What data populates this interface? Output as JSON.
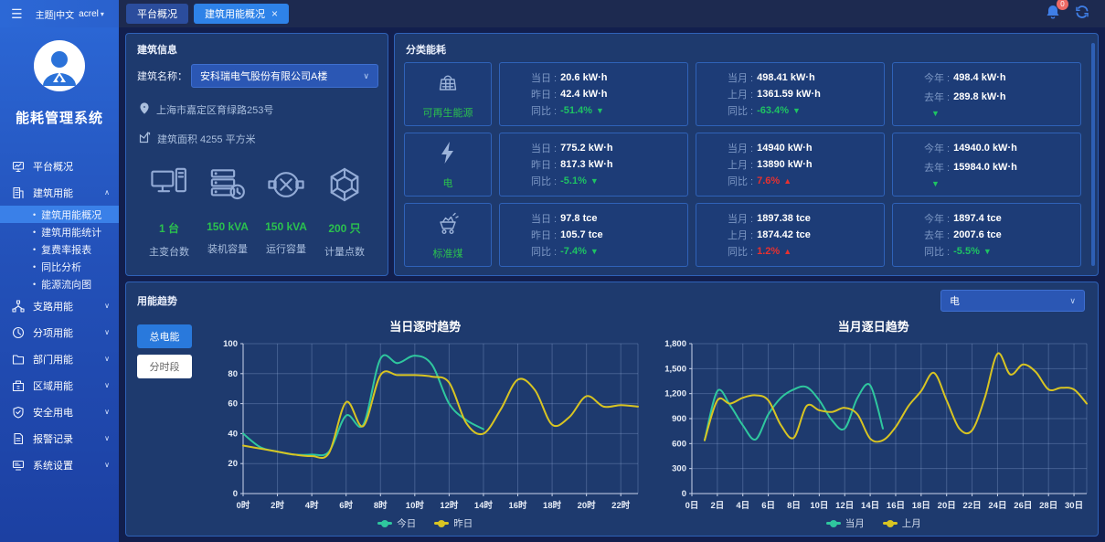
{
  "topbar": {
    "brand_menu": "主题|中文",
    "user": "acrel",
    "badge": "0",
    "tabs": [
      {
        "label": "平台概况"
      },
      {
        "label": "建筑用能概况"
      }
    ]
  },
  "sidebar": {
    "app_title": "能耗管理系统",
    "items": [
      {
        "label": "平台概况",
        "chev": ""
      },
      {
        "label": "建筑用能",
        "chev": "∧"
      },
      {
        "label": "建筑用能概况"
      },
      {
        "label": "建筑用能统计"
      },
      {
        "label": "复费率报表"
      },
      {
        "label": "同比分析"
      },
      {
        "label": "能源流向图"
      },
      {
        "label": "支路用能",
        "chev": "∨"
      },
      {
        "label": "分项用能",
        "chev": "∨"
      },
      {
        "label": "部门用能",
        "chev": "∨"
      },
      {
        "label": "区域用能",
        "chev": "∨"
      },
      {
        "label": "安全用电",
        "chev": "∨"
      },
      {
        "label": "报警记录",
        "chev": "∨"
      },
      {
        "label": "系统设置",
        "chev": "∨"
      }
    ]
  },
  "building": {
    "panel_title": "建筑信息",
    "name_label": "建筑名称：",
    "name_value": "安科瑞电气股份有限公司A楼",
    "address": "上海市嘉定区育绿路253号",
    "area": "建筑面积 4255 平方米",
    "stats": [
      {
        "value": "1 台",
        "label": "主变台数"
      },
      {
        "value": "150 kVA",
        "label": "装机容量"
      },
      {
        "value": "150 kVA",
        "label": "运行容量"
      },
      {
        "value": "200 只",
        "label": "计量点数"
      }
    ]
  },
  "energy": {
    "panel_title": "分类能耗",
    "rows": [
      {
        "category": "可再生能源",
        "boxes": [
          {
            "l1": {
              "label": "当日 :",
              "value": "20.6 kW·h"
            },
            "l2": {
              "label": "昨日 :",
              "value": "42.4 kW·h"
            },
            "cmp": {
              "label": "同比 :",
              "value": "-51.4%",
              "dir": "down"
            }
          },
          {
            "l1": {
              "label": "当月 :",
              "value": "498.41 kW·h"
            },
            "l2": {
              "label": "上月 :",
              "value": "1361.59 kW·h"
            },
            "cmp": {
              "label": "同比 :",
              "value": "-63.4%",
              "dir": "down"
            }
          },
          {
            "l1": {
              "label": "今年 :",
              "value": "498.4 kW·h"
            },
            "l2": {
              "label": "去年 :",
              "value": "289.8 kW·h"
            },
            "cmp": {
              "label": "",
              "value": "",
              "dir": "down"
            }
          }
        ]
      },
      {
        "category": "电",
        "boxes": [
          {
            "l1": {
              "label": "当日 :",
              "value": "775.2 kW·h"
            },
            "l2": {
              "label": "昨日 :",
              "value": "817.3 kW·h"
            },
            "cmp": {
              "label": "同比 :",
              "value": "-5.1%",
              "dir": "down"
            }
          },
          {
            "l1": {
              "label": "当月 :",
              "value": "14940 kW·h"
            },
            "l2": {
              "label": "上月 :",
              "value": "13890 kW·h"
            },
            "cmp": {
              "label": "同比 :",
              "value": "7.6%",
              "dir": "up"
            }
          },
          {
            "l1": {
              "label": "今年 :",
              "value": "14940.0 kW·h"
            },
            "l2": {
              "label": "去年 :",
              "value": "15984.0 kW·h"
            },
            "cmp": {
              "label": "",
              "value": "",
              "dir": "down"
            }
          }
        ]
      },
      {
        "category": "标准煤",
        "boxes": [
          {
            "l1": {
              "label": "当日 :",
              "value": "97.8 tce"
            },
            "l2": {
              "label": "昨日 :",
              "value": "105.7 tce"
            },
            "cmp": {
              "label": "同比 :",
              "value": "-7.4%",
              "dir": "down"
            }
          },
          {
            "l1": {
              "label": "当月 :",
              "value": "1897.38 tce"
            },
            "l2": {
              "label": "上月 :",
              "value": "1874.42 tce"
            },
            "cmp": {
              "label": "同比 :",
              "value": "1.2%",
              "dir": "up"
            }
          },
          {
            "l1": {
              "label": "今年 :",
              "value": "1897.4 tce"
            },
            "l2": {
              "label": "去年 :",
              "value": "2007.6 tce"
            },
            "cmp": {
              "label": "同比 :",
              "value": "-5.5%",
              "dir": "down"
            }
          }
        ]
      }
    ]
  },
  "trend": {
    "panel_title": "用能趋势",
    "buttons": [
      {
        "label": "总电能"
      },
      {
        "label": "分时段"
      }
    ],
    "select_value": "电"
  },
  "chart_data": [
    {
      "type": "line",
      "title": "当日逐时趋势",
      "x_max": 23,
      "y_max": 100,
      "x_ticks": [
        {
          "v": 0,
          "label": "0时"
        },
        {
          "v": 2,
          "label": "2时"
        },
        {
          "v": 4,
          "label": "4时"
        },
        {
          "v": 6,
          "label": "6时"
        },
        {
          "v": 8,
          "label": "8时"
        },
        {
          "v": 10,
          "label": "10时"
        },
        {
          "v": 12,
          "label": "12时"
        },
        {
          "v": 14,
          "label": "14时"
        },
        {
          "v": 16,
          "label": "16时"
        },
        {
          "v": 18,
          "label": "18时"
        },
        {
          "v": 20,
          "label": "20时"
        },
        {
          "v": 22,
          "label": "22时"
        }
      ],
      "y_ticks": [
        {
          "v": 0,
          "label": "0"
        },
        {
          "v": 20,
          "label": "20"
        },
        {
          "v": 40,
          "label": "40"
        },
        {
          "v": 60,
          "label": "60"
        },
        {
          "v": 80,
          "label": "80"
        },
        {
          "v": 100,
          "label": "100"
        }
      ],
      "series": [
        {
          "name": "今日",
          "color": "#2fc79e",
          "x_start": 0,
          "values": [
            40,
            31,
            28,
            26,
            26,
            28,
            52,
            46,
            90,
            87,
            92,
            86,
            60,
            49,
            43
          ]
        },
        {
          "name": "昨日",
          "color": "#d8c422",
          "x_start": 0,
          "values": [
            32,
            30,
            28,
            26,
            25,
            27,
            61,
            45,
            79,
            79,
            79,
            78,
            74,
            47,
            40,
            56,
            76,
            69,
            46,
            51,
            65,
            58,
            59,
            58
          ]
        }
      ]
    },
    {
      "type": "line",
      "title": "当月逐日趋势",
      "x_max": 31,
      "y_max": 1800,
      "x_ticks": [
        {
          "v": 0,
          "label": "0日"
        },
        {
          "v": 2,
          "label": "2日"
        },
        {
          "v": 4,
          "label": "4日"
        },
        {
          "v": 6,
          "label": "6日"
        },
        {
          "v": 8,
          "label": "8日"
        },
        {
          "v": 10,
          "label": "10日"
        },
        {
          "v": 12,
          "label": "12日"
        },
        {
          "v": 14,
          "label": "14日"
        },
        {
          "v": 16,
          "label": "16日"
        },
        {
          "v": 18,
          "label": "18日"
        },
        {
          "v": 20,
          "label": "20日"
        },
        {
          "v": 22,
          "label": "22日"
        },
        {
          "v": 24,
          "label": "24日"
        },
        {
          "v": 26,
          "label": "26日"
        },
        {
          "v": 28,
          "label": "28日"
        },
        {
          "v": 30,
          "label": "30日"
        }
      ],
      "y_ticks": [
        {
          "v": 0,
          "label": "0"
        },
        {
          "v": 300,
          "label": "300"
        },
        {
          "v": 600,
          "label": "600"
        },
        {
          "v": 900,
          "label": "900"
        },
        {
          "v": 1200,
          "label": "1,200"
        },
        {
          "v": 1500,
          "label": "1,500"
        },
        {
          "v": 1800,
          "label": "1,800"
        }
      ],
      "series": [
        {
          "name": "当月",
          "color": "#2fc79e",
          "x_start": 1,
          "values": [
            640,
            1230,
            1060,
            820,
            650,
            950,
            1150,
            1250,
            1280,
            1120,
            880,
            780,
            1150,
            1300,
            780
          ]
        },
        {
          "name": "上月",
          "color": "#d8c422",
          "x_start": 1,
          "values": [
            640,
            1120,
            1080,
            1150,
            1180,
            1120,
            820,
            670,
            1050,
            1000,
            980,
            1030,
            950,
            660,
            640,
            800,
            1050,
            1230,
            1450,
            1120,
            780,
            760,
            1150,
            1680,
            1430,
            1550,
            1460,
            1250,
            1270,
            1250,
            1080
          ]
        }
      ]
    }
  ]
}
